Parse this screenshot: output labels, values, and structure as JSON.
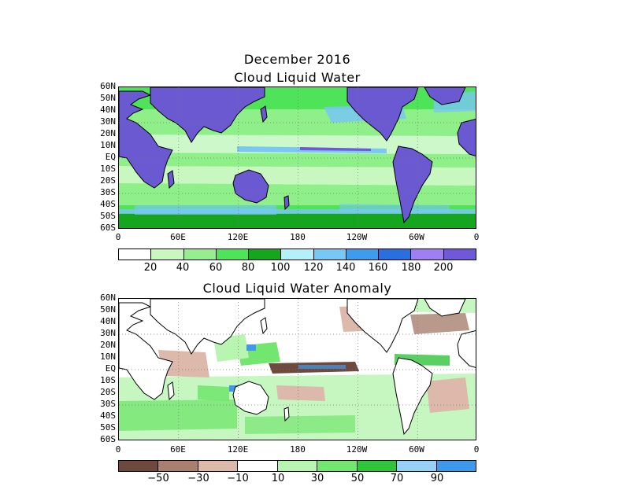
{
  "title_line1": "December 2016",
  "panels": [
    {
      "title": "Cloud Liquid Water",
      "lat_labels": [
        "60N",
        "50N",
        "40N",
        "30N",
        "20N",
        "10N",
        "EQ",
        "10S",
        "20S",
        "30S",
        "40S",
        "50S",
        "60S"
      ],
      "lon_labels": [
        "0",
        "60E",
        "120E",
        "180",
        "120W",
        "60W",
        "0"
      ],
      "land_color": "#6a59d0",
      "colorbar": {
        "colors": [
          "#ffffff",
          "#c8f7c0",
          "#96ef8c",
          "#4fe35a",
          "#16a51e",
          "#b4f0fa",
          "#78c7f5",
          "#3e9cec",
          "#2a6fde",
          "#a07ef3",
          "#7058d9"
        ],
        "labels": [
          "20",
          "40",
          "60",
          "80",
          "100",
          "120",
          "140",
          "160",
          "180",
          "200"
        ]
      }
    },
    {
      "title": "Cloud Liquid Water Anomaly",
      "lat_labels": [
        "60N",
        "50N",
        "40N",
        "30N",
        "20N",
        "10N",
        "EQ",
        "10S",
        "20S",
        "30S",
        "40S",
        "50S",
        "60S"
      ],
      "lon_labels": [
        "0",
        "60E",
        "120E",
        "180",
        "120W",
        "60W",
        "0"
      ],
      "colorbar": {
        "colors": [
          "#6e4a3e",
          "#a98070",
          "#dcb9ab",
          "#ffffff",
          "#b8f5b0",
          "#73e66f",
          "#2fc43a",
          "#96d0f6",
          "#3e98ec"
        ],
        "labels": [
          "−50",
          "−30",
          "−10",
          "10",
          "30",
          "50",
          "70",
          "90"
        ]
      }
    }
  ]
}
